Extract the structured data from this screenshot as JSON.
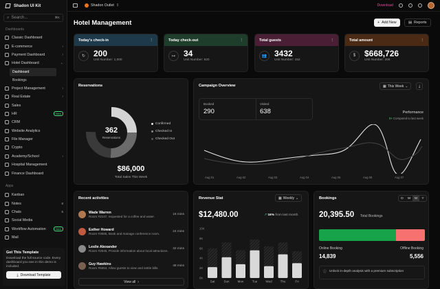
{
  "sidebar": {
    "brand": "Shadon UI Kit",
    "search_placeholder": "Search...",
    "search_kbd": "⌘K",
    "section_dashboards": "Dashboards",
    "items": [
      {
        "label": "Classic Dashboard",
        "chev": ""
      },
      {
        "label": "E-commerce",
        "chev": "›"
      },
      {
        "label": "Payment Dashboard",
        "chev": "›"
      },
      {
        "label": "Hotel Dashboard",
        "chev": "⌄"
      }
    ],
    "subitems": [
      "Dashboard",
      "Bookings"
    ],
    "items2": [
      {
        "label": "Project Management",
        "chev": "›"
      },
      {
        "label": "Real Estate",
        "chev": "›"
      },
      {
        "label": "Sales",
        "chev": ""
      },
      {
        "label": "HR",
        "badge": "New"
      },
      {
        "label": "CRM",
        "chev": ""
      },
      {
        "label": "Website Analytics",
        "chev": ""
      },
      {
        "label": "File Manager",
        "chev": ""
      },
      {
        "label": "Crypto",
        "chev": ""
      },
      {
        "label": "Academy/School",
        "chev": "›"
      },
      {
        "label": "Hospital Management",
        "chev": ""
      },
      {
        "label": "Finance Dashboard",
        "chev": ""
      }
    ],
    "section_apps": "Apps",
    "apps": [
      {
        "label": "Kanban",
        "count": ""
      },
      {
        "label": "Notes",
        "count": "8"
      },
      {
        "label": "Chats",
        "count": "5"
      },
      {
        "label": "Social Media",
        "count": ""
      },
      {
        "label": "Workflow Automation",
        "badge": "New"
      },
      {
        "label": "Mail",
        "count": ""
      }
    ],
    "promo": {
      "title": "Get This Template",
      "desc": "Download the full source code. Every dashboard you see in this demo is included.",
      "button": "Download Template"
    }
  },
  "topbar": {
    "workspace": "Shadon Outlet",
    "download": "Download"
  },
  "page": {
    "title": "Hotel Management",
    "add_new": "Add New",
    "reports": "Reports"
  },
  "stats": [
    {
      "title": "Today's check-in",
      "value": "200",
      "unit": "Unit Number: 1,000",
      "icon": "↻",
      "color": "#1e3a4a"
    },
    {
      "title": "Today check-out",
      "value": "34",
      "unit": "Unit Number: 520",
      "icon": "↦",
      "color": "#1e3d2a"
    },
    {
      "title": "Total guests",
      "value": "3432",
      "unit": "Unit Number: 152",
      "icon": "👥",
      "color": "#4a1e35"
    },
    {
      "title": "Total amount",
      "value": "$668,726",
      "unit": "Unit Number: 266",
      "icon": "$",
      "color": "#4a2a14"
    }
  ],
  "reservations": {
    "title": "Reservations",
    "center_value": "362",
    "center_label": "Reservations",
    "legend": [
      "Confirmed",
      "Checked In",
      "Checked Out"
    ],
    "total": "$86,000",
    "total_label": "Total Sales This Week"
  },
  "campaign": {
    "title": "Campaign Overview",
    "period": "This Week",
    "booked_label": "Booked",
    "booked_value": "290",
    "visited_label": "Visited",
    "visited_value": "638",
    "perf_label": "Performance",
    "perf_change": "0+",
    "perf_note": "Compared to last week",
    "x_ticks": [
      "Aug 01",
      "Aug 02",
      "Aug 03",
      "Aug 04",
      "Aug 05",
      "Aug 06",
      "Aug 07"
    ]
  },
  "activities": {
    "title": "Recent activities",
    "items": [
      {
        "name": "Wade Warren",
        "desc": "Room #2147, requested for a coffee and water.",
        "time": "16 mins",
        "color": "#b07850"
      },
      {
        "name": "Esther Howard",
        "desc": "Room #3565, Book and manage conference room.",
        "time": "24 mins",
        "color": "#c05a40"
      },
      {
        "name": "Leslie Alexander",
        "desc": "Room #2546, Provide information about local attractions.",
        "time": "32 mins",
        "color": "#8a8a8a"
      },
      {
        "name": "Guy Hawkins",
        "desc": "Room #5654, Allow guests to view and settle bills.",
        "time": "48 mins",
        "color": "#7a6050"
      }
    ],
    "view_all": "View all"
  },
  "revenue": {
    "title": "Revenue Stat",
    "period": "Weekly",
    "value": "$12,480.00",
    "change": "16%",
    "change_note": "from last month"
  },
  "chart_data": {
    "type": "bar",
    "categories": [
      "Sat",
      "Sun",
      "Mon",
      "Tue",
      "Wed",
      "Thu",
      "Fri"
    ],
    "values": [
      2.2,
      4.2,
      2.8,
      5.6,
      2.4,
      4.8,
      3.0
    ],
    "bg_values": [
      6.0,
      7.2,
      5.6,
      7.8,
      6.4,
      7.2,
      5.4
    ],
    "y_ticks": [
      "10K",
      "8K",
      "6K",
      "4K",
      "2K",
      "0K"
    ],
    "ylim": [
      0,
      10
    ]
  },
  "bookings": {
    "title": "Bookings",
    "toggles": [
      "D",
      "W",
      "M",
      "Y"
    ],
    "value": "20,395.50",
    "value_label": "Total Bookings",
    "online_label": "Online Booking",
    "online_value": "14,839",
    "offline_label": "Offline Booking",
    "offline_value": "5,556",
    "online_share": 0.727,
    "note": "Unlock in-depth analysis with a premium subscription",
    "online_color": "#16a34a",
    "offline_color": "#f87171"
  }
}
